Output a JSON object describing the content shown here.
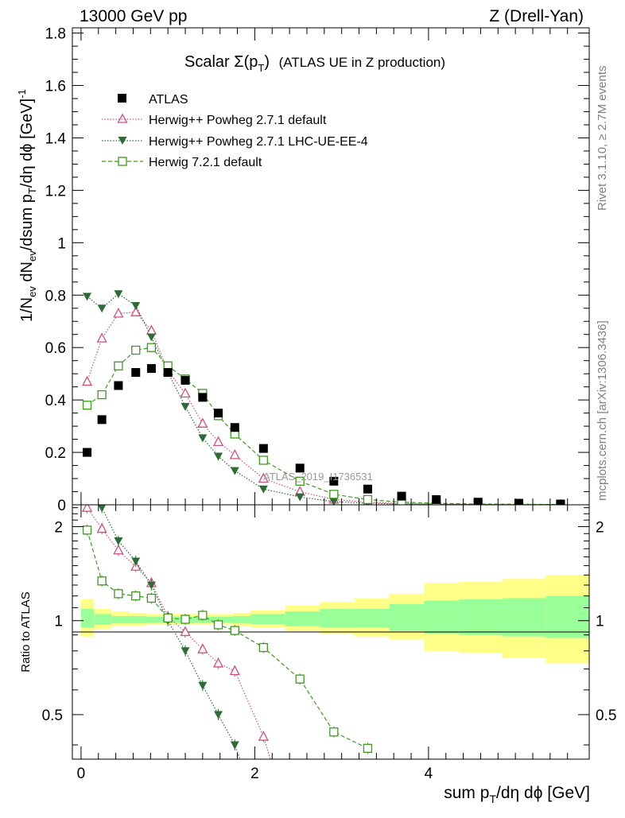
{
  "header": {
    "left": "13000 GeV pp",
    "right": "Z (Drell-Yan)"
  },
  "side_labels": {
    "rivet": "Rivet 3.1.10, ≥ 2.7M events",
    "mcplots": "mcplots.cern.ch [arXiv:1306.3436]"
  },
  "watermark": "ATLAS_2019_I1736531",
  "colors": {
    "atlas": "#000000",
    "powheg_default": "#d0507a",
    "powheg_lhc": "#2e6b37",
    "herwig721": "#3c9a1e",
    "band_inner": "#99ff99",
    "band_outer": "#ffff88"
  },
  "chart_data": [
    {
      "type": "scatter",
      "title_main": "Scalar Σ(p",
      "title_sub": "T",
      "title_close": ")",
      "title_rest": "(ATLAS UE in Z production)",
      "ylabel": "1/N_ev dN_ev/dsum p_T/dη dϕ [GeV]^-1",
      "ylim": [
        0,
        1.82
      ],
      "yticks": [
        "0",
        "0.2",
        "0.4",
        "0.6",
        "0.8",
        "1",
        "1.2",
        "1.4",
        "1.6",
        "1.8"
      ],
      "xlim": [
        -0.1,
        5.85
      ],
      "legend": [
        "ATLAS",
        "Herwig++ Powheg 2.7.1 default",
        "Herwig++ Powheg 2.7.1 LHC-UE-EE-4",
        "Herwig 7.2.1 default"
      ],
      "series": [
        {
          "name": "ATLAS",
          "x": [
            0.07,
            0.24,
            0.43,
            0.63,
            0.81,
            1.0,
            1.2,
            1.4,
            1.58,
            1.77,
            2.1,
            2.52,
            2.91,
            3.3,
            3.69,
            4.09,
            4.57,
            5.04,
            5.52
          ],
          "values": [
            0.2,
            0.325,
            0.455,
            0.505,
            0.52,
            0.505,
            0.475,
            0.41,
            0.35,
            0.295,
            0.215,
            0.14,
            0.09,
            0.06,
            0.033,
            0.02,
            0.01,
            0.006,
            0.003
          ]
        },
        {
          "name": "Herwig++ Powheg 2.7.1 default",
          "x": [
            0.07,
            0.24,
            0.43,
            0.63,
            0.81,
            1.0,
            1.2,
            1.4,
            1.58,
            1.77,
            2.1,
            2.52,
            2.91,
            3.3,
            3.69,
            4.09,
            4.57,
            5.04,
            5.52
          ],
          "values": [
            0.47,
            0.635,
            0.73,
            0.735,
            0.665,
            0.51,
            0.425,
            0.31,
            0.24,
            0.19,
            0.1,
            0.05,
            0.02,
            0.01,
            0.005,
            0.003,
            0.002,
            0.001,
            0.0005
          ]
        },
        {
          "name": "Herwig++ Powheg 2.7.1 LHC-UE-EE-4",
          "x": [
            0.07,
            0.24,
            0.43,
            0.63,
            0.81,
            1.0,
            1.2,
            1.4,
            1.58,
            1.77,
            2.1,
            2.52,
            2.91,
            3.3,
            3.69,
            4.09,
            4.57,
            5.04,
            5.52
          ],
          "values": [
            0.795,
            0.75,
            0.805,
            0.76,
            0.64,
            0.505,
            0.375,
            0.255,
            0.185,
            0.13,
            0.06,
            0.03,
            0.012,
            0.006,
            0.003,
            0.002,
            0.001,
            0.0005,
            0.0003
          ]
        },
        {
          "name": "Herwig 7.2.1 default",
          "x": [
            0.07,
            0.24,
            0.43,
            0.63,
            0.81,
            1.0,
            1.2,
            1.4,
            1.58,
            1.77,
            2.1,
            2.52,
            2.91,
            3.3,
            3.69,
            4.09,
            4.57,
            5.04,
            5.52
          ],
          "values": [
            0.38,
            0.42,
            0.53,
            0.59,
            0.6,
            0.53,
            0.48,
            0.425,
            0.34,
            0.27,
            0.17,
            0.09,
            0.04,
            0.02,
            0.01,
            0.006,
            0.003,
            0.002,
            0.001
          ]
        }
      ]
    },
    {
      "type": "line",
      "ylabel": "Ratio to ATLAS",
      "xlabel": "sum p_T/dη dϕ [GeV]",
      "ylim": [
        0.36,
        2.35
      ],
      "yscale": "log",
      "yticks": [
        "0.5",
        "1",
        "2"
      ],
      "xticks": [
        "0",
        "2",
        "4"
      ],
      "xlim": [
        -0.1,
        5.85
      ],
      "bins": [
        [
          0,
          0.15
        ],
        [
          0.15,
          0.35
        ],
        [
          0.35,
          0.55
        ],
        [
          0.55,
          0.75
        ],
        [
          0.75,
          0.95
        ],
        [
          0.95,
          1.15
        ],
        [
          1.15,
          1.35
        ],
        [
          1.35,
          1.55
        ],
        [
          1.55,
          1.75
        ],
        [
          1.75,
          1.95
        ],
        [
          1.95,
          2.35
        ],
        [
          2.35,
          2.75
        ],
        [
          2.75,
          3.15
        ],
        [
          3.15,
          3.55
        ],
        [
          3.55,
          3.95
        ],
        [
          3.95,
          4.35
        ],
        [
          4.35,
          4.85
        ],
        [
          4.85,
          5.35
        ],
        [
          5.35,
          5.85
        ]
      ],
      "band_inner": [
        [
          0.95,
          1.09
        ],
        [
          0.97,
          1.05
        ],
        [
          0.98,
          1.035
        ],
        [
          0.98,
          1.035
        ],
        [
          0.985,
          1.03
        ],
        [
          0.985,
          1.03
        ],
        [
          0.985,
          1.03
        ],
        [
          0.985,
          1.03
        ],
        [
          0.985,
          1.03
        ],
        [
          0.98,
          1.035
        ],
        [
          0.975,
          1.05
        ],
        [
          0.96,
          1.07
        ],
        [
          0.95,
          1.09
        ],
        [
          0.95,
          1.09
        ],
        [
          0.93,
          1.13
        ],
        [
          0.91,
          1.16
        ],
        [
          0.9,
          1.17
        ],
        [
          0.89,
          1.18
        ],
        [
          0.88,
          1.2
        ]
      ],
      "band_outer": [
        [
          0.89,
          1.17
        ],
        [
          0.94,
          1.09
        ],
        [
          0.96,
          1.07
        ],
        [
          0.96,
          1.06
        ],
        [
          0.97,
          1.05
        ],
        [
          0.97,
          1.05
        ],
        [
          0.97,
          1.05
        ],
        [
          0.97,
          1.05
        ],
        [
          0.97,
          1.05
        ],
        [
          0.96,
          1.06
        ],
        [
          0.95,
          1.08
        ],
        [
          0.93,
          1.12
        ],
        [
          0.91,
          1.15
        ],
        [
          0.89,
          1.18
        ],
        [
          0.87,
          1.22
        ],
        [
          0.8,
          1.32
        ],
        [
          0.79,
          1.33
        ],
        [
          0.76,
          1.36
        ],
        [
          0.73,
          1.4
        ]
      ],
      "series": [
        {
          "name": "Herwig++ Powheg 2.7.1 default",
          "x": [
            0.07,
            0.24,
            0.43,
            0.63,
            0.81,
            1.0,
            1.2,
            1.4,
            1.58,
            1.77,
            2.1
          ],
          "values": [
            2.3,
            1.97,
            1.68,
            1.49,
            1.32,
            1.03,
            0.92,
            0.81,
            0.73,
            0.69,
            0.425
          ]
        },
        {
          "name": "Herwig++ Powheg 2.7.1 LHC-UE-EE-4",
          "x": [
            0.24,
            0.43,
            0.63,
            0.81,
            1.0,
            1.2,
            1.4,
            1.58,
            1.77
          ],
          "values": [
            2.3,
            1.8,
            1.55,
            1.3,
            1.0,
            0.8,
            0.62,
            0.5,
            0.4
          ]
        },
        {
          "name": "Herwig 7.2.1 default",
          "x": [
            0.07,
            0.24,
            0.43,
            0.63,
            0.81,
            1.0,
            1.2,
            1.4,
            1.58,
            1.77,
            2.1,
            2.52,
            2.91,
            3.3
          ],
          "values": [
            1.95,
            1.34,
            1.22,
            1.2,
            1.18,
            1.02,
            1.01,
            1.04,
            0.97,
            0.93,
            0.82,
            0.65,
            0.44,
            0.39
          ]
        }
      ]
    }
  ]
}
